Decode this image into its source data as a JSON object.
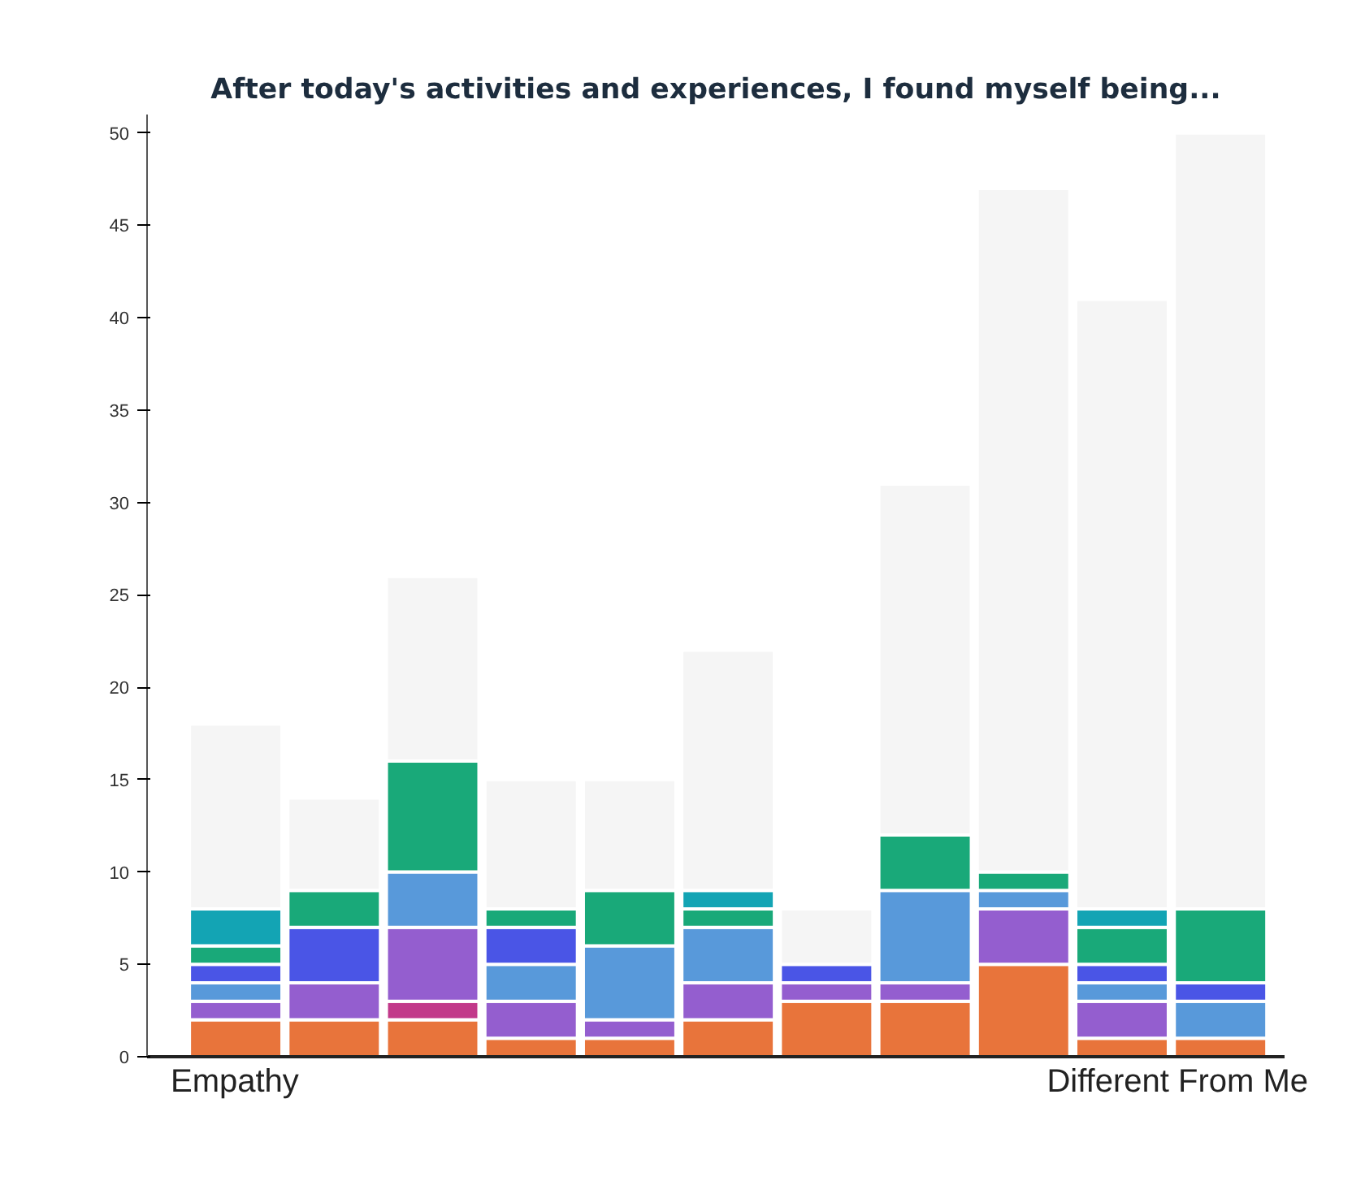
{
  "chart_data": {
    "type": "bar",
    "title": "After today's activities and experiences, I found myself being...",
    "stacked": true,
    "categories": [
      null,
      null,
      null,
      null,
      null,
      null,
      null,
      null,
      null,
      null,
      null
    ],
    "series": [
      {
        "color": "#e8743b",
        "values": [
          2,
          2,
          2,
          1,
          1,
          2,
          3,
          3,
          5,
          1,
          1
        ]
      },
      {
        "color": "#c2398a",
        "values": [
          0,
          0,
          1,
          0,
          0,
          0,
          0,
          0,
          0,
          0,
          0
        ]
      },
      {
        "color": "#945ecf",
        "values": [
          1,
          2,
          4,
          2,
          1,
          2,
          1,
          1,
          3,
          2,
          0
        ]
      },
      {
        "color": "#5899da",
        "values": [
          1,
          0,
          3,
          2,
          4,
          3,
          0,
          5,
          1,
          1,
          2
        ]
      },
      {
        "color": "#4a55e6",
        "values": [
          1,
          3,
          0,
          2,
          0,
          0,
          1,
          0,
          0,
          1,
          1
        ]
      },
      {
        "color": "#19a979",
        "values": [
          1,
          2,
          6,
          1,
          3,
          1,
          0,
          3,
          1,
          2,
          4
        ]
      },
      {
        "color": "#13a4b4",
        "values": [
          2,
          0,
          0,
          0,
          0,
          1,
          0,
          0,
          0,
          1,
          0
        ]
      },
      {
        "color": "#f5f5f5",
        "values": [
          10,
          5,
          10,
          7,
          6,
          13,
          3,
          19,
          37,
          33,
          42
        ]
      }
    ],
    "ylim": [
      0,
      51
    ],
    "yticks": [
      0,
      5,
      10,
      15,
      20,
      25,
      30,
      35,
      40,
      45,
      50
    ],
    "grid": false,
    "annotations": [
      "Empathy",
      "Different From Me"
    ]
  }
}
